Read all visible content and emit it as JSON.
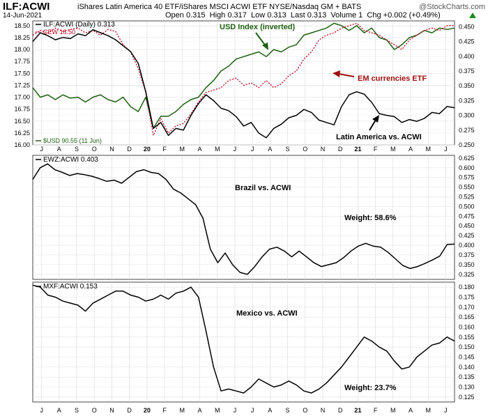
{
  "header": {
    "ticker": "ILF:ACWI",
    "description": "iShares Latin America 40 ETF/iShares MSCI ACWI ETF  NYSE/Nasdaq GM + BATS",
    "branding": "@StockCharts.com",
    "date": "14-Jun-2021",
    "open_label": "Open",
    "open": "0.315",
    "high_label": "High",
    "high": "0.317",
    "low_label": "Low",
    "low": "0.313",
    "last_label": "Last",
    "last": "0.313",
    "volume_label": "Volume",
    "volume": "1",
    "chg_label": "Chg",
    "chg": "+0.002 (+0.49%)"
  },
  "x_axis": {
    "tick_labels": [
      "J",
      "A",
      "S",
      "O",
      "N",
      "D",
      "20",
      "F",
      "M",
      "A",
      "M",
      "J",
      "J",
      "A",
      "S",
      "O",
      "N",
      "D",
      "21",
      "F",
      "M",
      "A",
      "M",
      "J"
    ]
  },
  "chart_data": [
    {
      "type": "line",
      "legend": [
        "ILF:ACWI (Daily) 0.313",
        "CEW 18.50",
        "$USD 90.55 (11 Jun)"
      ],
      "annotations": [
        "USD Index (inverted)",
        "EM currencies ETF",
        "Latin America vs. ACWI"
      ],
      "left_ticks": [
        16.0,
        16.25,
        16.5,
        16.75,
        17.0,
        17.25,
        17.5,
        17.75,
        18.0,
        18.25,
        18.5
      ],
      "right_ticks": [
        0.25,
        0.275,
        0.3,
        0.325,
        0.35,
        0.375,
        0.4,
        0.425,
        0.45
      ],
      "left_ylim": [
        16.0,
        18.6
      ],
      "right_ylim": [
        0.25,
        0.46
      ],
      "series": [
        {
          "name": "ILF:ACWI",
          "axis": "right",
          "color": "#000000",
          "values": [
            0.425,
            0.44,
            0.435,
            0.428,
            0.432,
            0.43,
            0.438,
            0.435,
            0.445,
            0.44,
            0.435,
            0.428,
            0.418,
            0.408,
            0.388,
            0.34,
            0.278,
            0.288,
            0.266,
            0.278,
            0.275,
            0.3,
            0.32,
            0.335,
            0.325,
            0.312,
            0.308,
            0.298,
            0.282,
            0.288,
            0.27,
            0.262,
            0.278,
            0.285,
            0.296,
            0.3,
            0.31,
            0.305,
            0.292,
            0.288,
            0.284,
            0.315,
            0.335,
            0.34,
            0.336,
            0.322,
            0.303,
            0.3,
            0.298,
            0.288,
            0.293,
            0.29,
            0.295,
            0.305,
            0.303,
            0.315,
            0.313
          ]
        },
        {
          "name": "CEW",
          "axis": "left",
          "color": "#c0001a",
          "values": [
            18.3,
            18.4,
            18.35,
            18.45,
            18.38,
            18.42,
            18.45,
            18.35,
            18.4,
            18.3,
            18.42,
            18.38,
            18.1,
            17.95,
            17.6,
            17.1,
            16.2,
            16.55,
            16.25,
            16.4,
            16.45,
            16.65,
            16.9,
            17.1,
            17.15,
            17.2,
            17.35,
            17.4,
            17.25,
            17.3,
            17.2,
            17.35,
            17.2,
            17.28,
            17.45,
            17.55,
            17.8,
            17.95,
            18.2,
            18.3,
            18.35,
            18.45,
            18.5,
            18.55,
            18.4,
            18.35,
            18.3,
            18.2,
            18.1,
            18.0,
            18.2,
            18.3,
            18.4,
            18.45,
            18.4,
            18.5,
            18.5
          ]
        },
        {
          "name": "$USD",
          "axis": "left",
          "color": "#1e5f12",
          "values": [
            17.2,
            17.0,
            17.05,
            16.95,
            17.05,
            16.98,
            17.0,
            16.9,
            17.0,
            17.05,
            16.95,
            16.9,
            17.0,
            16.8,
            16.7,
            17.0,
            16.35,
            16.6,
            16.6,
            16.7,
            16.85,
            16.95,
            17.0,
            17.2,
            17.35,
            17.55,
            17.65,
            17.8,
            17.85,
            17.9,
            17.95,
            17.85,
            18.0,
            17.95,
            18.05,
            18.1,
            18.3,
            18.35,
            18.4,
            18.45,
            18.55,
            18.5,
            18.4,
            18.5,
            18.35,
            18.45,
            18.25,
            18.2,
            18.0,
            18.1,
            18.25,
            18.3,
            18.4,
            18.35,
            18.45,
            18.42,
            18.45
          ]
        }
      ]
    },
    {
      "type": "line",
      "legend": [
        "EWZ:ACWI 0.403"
      ],
      "annotations": [
        "Brazil vs. ACWI",
        "Weight: 58.6%"
      ],
      "right_ticks": [
        0.325,
        0.35,
        0.375,
        0.4,
        0.425,
        0.45,
        0.475,
        0.5,
        0.525,
        0.55,
        0.575,
        0.6,
        0.625
      ],
      "right_ylim": [
        0.312,
        0.632
      ],
      "series": [
        {
          "name": "EWZ:ACWI",
          "color": "#000000",
          "values": [
            0.57,
            0.6,
            0.61,
            0.595,
            0.588,
            0.58,
            0.585,
            0.582,
            0.578,
            0.572,
            0.565,
            0.568,
            0.56,
            0.575,
            0.59,
            0.595,
            0.588,
            0.585,
            0.57,
            0.545,
            0.535,
            0.52,
            0.505,
            0.47,
            0.39,
            0.355,
            0.38,
            0.35,
            0.33,
            0.325,
            0.345,
            0.37,
            0.39,
            0.395,
            0.385,
            0.37,
            0.385,
            0.37,
            0.355,
            0.345,
            0.35,
            0.355,
            0.368,
            0.385,
            0.398,
            0.405,
            0.398,
            0.395,
            0.382,
            0.365,
            0.348,
            0.34,
            0.345,
            0.353,
            0.362,
            0.372,
            0.402,
            0.403
          ]
        }
      ]
    },
    {
      "type": "line",
      "legend": [
        "MXF:ACWI 0.153"
      ],
      "annotations": [
        "Mexico vs. ACWI",
        "Weight: 23.7%"
      ],
      "right_ticks": [
        0.125,
        0.13,
        0.135,
        0.14,
        0.145,
        0.15,
        0.155,
        0.16,
        0.165,
        0.17,
        0.175,
        0.18
      ],
      "right_ylim": [
        0.1225,
        0.1825
      ],
      "series": [
        {
          "name": "MXF:ACWI",
          "color": "#000000",
          "values": [
            0.181,
            0.18,
            0.176,
            0.175,
            0.173,
            0.172,
            0.171,
            0.168,
            0.172,
            0.174,
            0.176,
            0.178,
            0.178,
            0.176,
            0.175,
            0.173,
            0.174,
            0.176,
            0.174,
            0.177,
            0.178,
            0.18,
            0.175,
            0.158,
            0.14,
            0.128,
            0.129,
            0.128,
            0.127,
            0.13,
            0.134,
            0.132,
            0.13,
            0.131,
            0.133,
            0.131,
            0.128,
            0.127,
            0.129,
            0.132,
            0.136,
            0.14,
            0.145,
            0.15,
            0.155,
            0.153,
            0.15,
            0.148,
            0.143,
            0.139,
            0.14,
            0.145,
            0.148,
            0.151,
            0.152,
            0.155,
            0.153
          ]
        }
      ]
    }
  ]
}
